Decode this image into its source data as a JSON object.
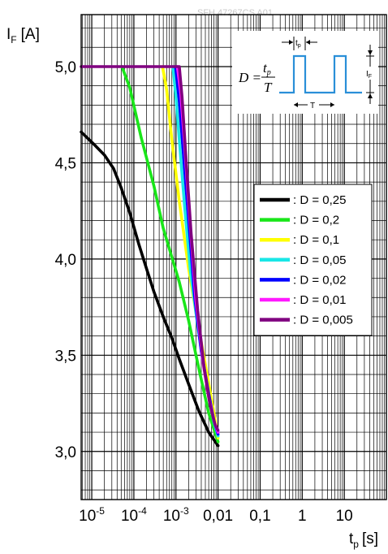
{
  "chart_data": {
    "type": "line",
    "watermark": "SFH 47267CS A01",
    "ylabel": {
      "main": "I",
      "sub": "F",
      "unit": "[A]"
    },
    "xlabel": {
      "main": "t",
      "sub": "p",
      "unit": "[s]"
    },
    "x_scale": "log",
    "xlim": [
      5.6e-06,
      100
    ],
    "ylim": [
      2.75,
      5.27
    ],
    "x_ticks": [
      {
        "value": 1e-05,
        "base": "10",
        "exp": "-5"
      },
      {
        "value": 0.0001,
        "base": "10",
        "exp": "-4"
      },
      {
        "value": 0.001,
        "base": "10",
        "exp": "-3"
      },
      {
        "value": 0.01,
        "label": "0,01"
      },
      {
        "value": 0.1,
        "label": "0,1"
      },
      {
        "value": 1,
        "label": "1"
      },
      {
        "value": 10,
        "label": "10"
      }
    ],
    "y_ticks": [
      {
        "value": 3.0,
        "label": "3,0"
      },
      {
        "value": 3.5,
        "label": "3,5"
      },
      {
        "value": 4.0,
        "label": "4,0"
      },
      {
        "value": 4.5,
        "label": "4,5"
      },
      {
        "value": 5.0,
        "label": "5,0"
      }
    ],
    "grid": true,
    "legend_position": "right",
    "series": [
      {
        "name": ": D = 0,25",
        "color": "#000000",
        "x": [
          5.6e-06,
          1.2e-05,
          2e-05,
          3.3e-05,
          5e-05,
          8e-05,
          0.00013,
          0.0002,
          0.0003,
          0.0005,
          0.0008,
          0.0012,
          0.002,
          0.0035,
          0.006,
          0.01
        ],
        "y": [
          4.66,
          4.59,
          4.54,
          4.47,
          4.37,
          4.24,
          4.08,
          3.95,
          3.83,
          3.7,
          3.59,
          3.48,
          3.35,
          3.21,
          3.1,
          3.03
        ]
      },
      {
        "name": ": D = 0,2",
        "color": "#19e619",
        "x": [
          5.2e-05,
          8e-05,
          0.00015,
          0.0003,
          0.0005,
          0.0008,
          0.0012,
          0.002,
          0.0035,
          0.006,
          0.01
        ],
        "y": [
          5.0,
          4.89,
          4.63,
          4.38,
          4.16,
          4.01,
          3.88,
          3.68,
          3.43,
          3.2,
          3.05
        ]
      },
      {
        "name": ": D = 0,1",
        "color": "#ffff00",
        "x": [
          0.00048,
          0.0006,
          0.0008,
          0.0012,
          0.002,
          0.003,
          0.005,
          0.008,
          0.01
        ],
        "y": [
          5.0,
          4.88,
          4.62,
          4.3,
          3.95,
          3.72,
          3.45,
          3.2,
          3.07
        ]
      },
      {
        "name": ": D = 0,05",
        "color": "#19e6e6",
        "x": [
          0.00085,
          0.001,
          0.0012,
          0.0016,
          0.0022,
          0.003,
          0.004,
          0.006,
          0.008,
          0.01
        ],
        "y": [
          5.0,
          4.84,
          4.62,
          4.28,
          3.94,
          3.72,
          3.52,
          3.3,
          3.15,
          3.08
        ]
      },
      {
        "name": ": D = 0,02",
        "color": "#0000ff",
        "x": [
          0.00098,
          0.0012,
          0.0015,
          0.002,
          0.0028,
          0.004,
          0.006,
          0.008,
          0.01
        ],
        "y": [
          5.0,
          4.82,
          4.55,
          4.2,
          3.8,
          3.52,
          3.3,
          3.16,
          3.09
        ]
      },
      {
        "name": ": D = 0,01",
        "color": "#ff19ff",
        "x": [
          0.00108,
          0.0013,
          0.0016,
          0.0021,
          0.003,
          0.0045,
          0.006,
          0.008,
          0.01
        ],
        "y": [
          5.0,
          4.86,
          4.6,
          4.22,
          3.78,
          3.45,
          3.28,
          3.16,
          3.1
        ]
      },
      {
        "name": ": D = 0,005",
        "color": "#800080",
        "x": [
          5.6e-06,
          0.0012,
          0.0014,
          0.0017,
          0.0023,
          0.0033,
          0.0047,
          0.0065,
          0.0085,
          0.01
        ],
        "y": [
          5.0,
          5.0,
          4.84,
          4.55,
          4.13,
          3.73,
          3.43,
          3.24,
          3.14,
          3.11
        ]
      }
    ],
    "inset": {
      "formula_D": "D =",
      "formula_num": "t",
      "formula_num_sub": "p",
      "formula_den": "T",
      "tp_label": "t",
      "tp_label_sub": "p",
      "T_label": "T",
      "IF_label": "I",
      "IF_label_sub": "F"
    }
  }
}
